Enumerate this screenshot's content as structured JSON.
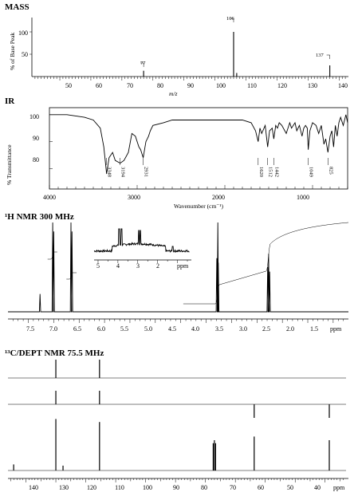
{
  "mass": {
    "title": "MASS",
    "ylabel": "% of Base Peak",
    "xlabel": "m/z",
    "yticks": [
      "100",
      "50"
    ],
    "xticks": [
      "50",
      "60",
      "70",
      "80",
      "90",
      "100",
      "110",
      "120",
      "130",
      "140"
    ],
    "peak_labels": [
      "106",
      "77",
      "137"
    ]
  },
  "ir": {
    "title": "IR",
    "ylabel": "% Transmittance",
    "xlabel": "Wavenumber (cm⁻¹)",
    "yticks": [
      "100",
      "90",
      "80"
    ],
    "xticks": [
      "4000",
      "3000",
      "2000",
      "1000"
    ],
    "peak_labels": [
      "3348",
      "3194",
      "2931",
      "1620",
      "1512",
      "1442",
      "1049",
      "825"
    ]
  },
  "hnmr": {
    "title": "¹H NMR 300 MHz",
    "xticks": [
      "7.5",
      "7.0",
      "6.5",
      "6.0",
      "5.5",
      "5.0",
      "4.5",
      "4.0",
      "3.5",
      "3.0",
      "2.5",
      "2.0",
      "1.5"
    ],
    "unit": "ppm",
    "inset_ticks": [
      "5",
      "4",
      "3",
      "2"
    ],
    "inset_unit": "ppm"
  },
  "cnmr": {
    "title": "¹³C/DEPT NMR 75.5 MHz",
    "xticks": [
      "140",
      "130",
      "120",
      "110",
      "100",
      "90",
      "80",
      "70",
      "60",
      "50",
      "40"
    ],
    "unit": "ppm"
  },
  "chart_data": [
    {
      "type": "bar",
      "name": "MASS",
      "x": [
        77,
        106,
        107,
        137
      ],
      "values": [
        13,
        100,
        8,
        25
      ],
      "xlim": [
        41,
        143
      ],
      "ylim": [
        0,
        100
      ]
    },
    {
      "type": "line",
      "name": "IR",
      "x": [
        4000,
        3800,
        3600,
        3500,
        3420,
        3380,
        3348,
        3320,
        3280,
        3250,
        3194,
        3150,
        3100,
        3060,
        3020,
        2980,
        2960,
        2931,
        2900,
        2870,
        2850,
        2820,
        2700,
        2600,
        2500,
        2400,
        2300,
        2200,
        2100,
        2000,
        1900,
        1800,
        1700,
        1650,
        1620,
        1600,
        1580,
        1540,
        1512,
        1490,
        1460,
        1442,
        1420,
        1400,
        1380,
        1350,
        1300,
        1260,
        1240,
        1200,
        1180,
        1150,
        1120,
        1100,
        1080,
        1060,
        1049,
        1030,
        1000,
        960,
        930,
        900,
        870,
        850,
        825,
        800,
        780,
        760,
        740,
        720,
        700,
        680,
        650,
        620,
        600
      ],
      "values": [
        100,
        100,
        99,
        98,
        95,
        88,
        78,
        84,
        86,
        83,
        82,
        83,
        86,
        93,
        92,
        88,
        87,
        84,
        90,
        92,
        94,
        96,
        97,
        98,
        98,
        98,
        98,
        98,
        98,
        98,
        98,
        98,
        97,
        94,
        90,
        95,
        93,
        96,
        88,
        94,
        95,
        91,
        96,
        95,
        97,
        96,
        93,
        97,
        95,
        97,
        94,
        96,
        92,
        95,
        96,
        95,
        87,
        94,
        97,
        96,
        93,
        96,
        89,
        91,
        86,
        92,
        94,
        88,
        96,
        92,
        97,
        99,
        96,
        100,
        97
      ],
      "xlim": [
        4000,
        600
      ],
      "ylim": [
        73,
        102
      ]
    },
    {
      "type": "line",
      "name": "1H NMR",
      "peaks_ppm": [
        7.27,
        7.02,
        7.0,
        6.66,
        6.64,
        3.79,
        3.77,
        3.76,
        2.79,
        2.77,
        2.75
      ],
      "peak_heights": [
        0.2,
        1.0,
        0.9,
        1.0,
        0.9,
        0.6,
        1.0,
        0.55,
        0.5,
        0.65,
        0.45
      ],
      "integrals": [
        {
          "from": 7.1,
          "to": 6.9,
          "rise": 0.22
        },
        {
          "from": 6.75,
          "to": 6.55,
          "rise": 0.22
        },
        {
          "from": 3.85,
          "to": 3.7,
          "rise": 0.18
        },
        {
          "from": 2.85,
          "to": 2.7,
          "rise": 0.18
        }
      ],
      "xlim": [
        7.9,
        1.2
      ]
    },
    {
      "type": "bar",
      "name": "13C NMR",
      "x": [
        144.1,
        130.0,
        127.6,
        115.4,
        77.0,
        76.6,
        77.4,
        63.7,
        38.6
      ],
      "values": [
        0.1,
        0.85,
        0.08,
        0.8,
        0.5,
        0.45,
        0.45,
        0.56,
        0.5
      ],
      "dept90": {
        "x": [
          130.0,
          115.4
        ],
        "values": [
          1,
          1
        ]
      },
      "dept135": {
        "x": [
          130.0,
          115.4,
          63.7,
          38.6
        ],
        "values": [
          1,
          1,
          -1,
          -1
        ]
      },
      "xlim": [
        146,
        33
      ]
    }
  ]
}
